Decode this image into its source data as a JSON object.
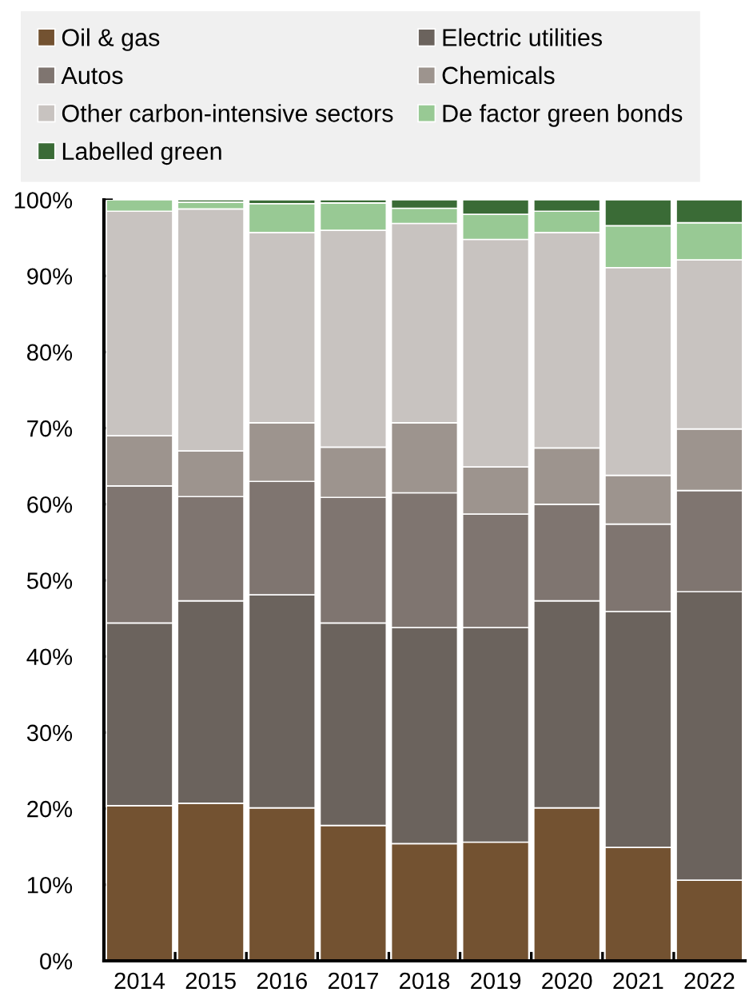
{
  "chart_data": {
    "type": "bar",
    "stacked": true,
    "categories": [
      "2014",
      "2015",
      "2016",
      "2017",
      "2018",
      "2019",
      "2020",
      "2021",
      "2022"
    ],
    "series": [
      {
        "name": "Oil & gas",
        "color": "#735231",
        "values": [
          20.4,
          20.7,
          20.1,
          17.8,
          15.4,
          15.6,
          20.1,
          14.9,
          10.6
        ]
      },
      {
        "name": "Electric utilities",
        "color": "#6b635d",
        "values": [
          24.0,
          26.6,
          28.0,
          26.6,
          28.4,
          28.2,
          27.2,
          31.0,
          37.9
        ]
      },
      {
        "name": "Autos",
        "color": "#7f7570",
        "values": [
          18.0,
          13.7,
          14.9,
          16.5,
          17.7,
          14.9,
          12.7,
          11.5,
          13.3
        ]
      },
      {
        "name": "Chemicals",
        "color": "#9d948e",
        "values": [
          6.6,
          6.0,
          7.7,
          6.6,
          9.2,
          6.2,
          7.4,
          6.4,
          8.1
        ]
      },
      {
        "name": "Other carbon-intensive sectors",
        "color": "#c8c3c0",
        "values": [
          29.5,
          31.8,
          25.0,
          28.5,
          26.2,
          29.9,
          28.3,
          27.3,
          22.2
        ]
      },
      {
        "name": "De factor green bonds",
        "color": "#98c994",
        "values": [
          1.5,
          0.9,
          3.8,
          3.6,
          2.0,
          3.3,
          2.8,
          5.5,
          4.9
        ]
      },
      {
        "name": "Labelled green",
        "color": "#3a6b36",
        "values": [
          null,
          0.3,
          0.5,
          0.4,
          1.1,
          1.9,
          1.5,
          3.4,
          3.0
        ]
      }
    ],
    "ylim": [
      0,
      100
    ],
    "yticks": [
      {
        "value": 0,
        "label": "0%"
      },
      {
        "value": 10,
        "label": "10%"
      },
      {
        "value": 20,
        "label": "20%"
      },
      {
        "value": 30,
        "label": "30%"
      },
      {
        "value": 40,
        "label": "40%"
      },
      {
        "value": 50,
        "label": "50%"
      },
      {
        "value": 60,
        "label": "60%"
      },
      {
        "value": 70,
        "label": "70%"
      },
      {
        "value": 80,
        "label": "80%"
      },
      {
        "value": 90,
        "label": "90%"
      },
      {
        "value": 100,
        "label": "100%"
      }
    ],
    "legend": "top"
  }
}
